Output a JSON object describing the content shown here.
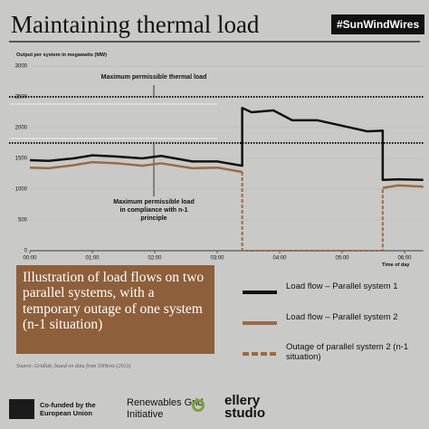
{
  "chart_data": {
    "type": "line",
    "title": "Maintaining thermal load",
    "tag": "#SunWindWires",
    "ylabel": "Output per system in megawatts (MW)",
    "xlabel": "Time of day",
    "xlim": [
      0,
      6.3
    ],
    "ylim": [
      0,
      3000
    ],
    "xticks": [
      {
        "value": 0,
        "label": "00:00"
      },
      {
        "value": 1,
        "label": "01:00"
      },
      {
        "value": 2,
        "label": "02:00"
      },
      {
        "value": 3,
        "label": "03:00"
      },
      {
        "value": 4,
        "label": "04:00"
      },
      {
        "value": 5,
        "label": "05:00"
      },
      {
        "value": 6,
        "label": "06:00"
      }
    ],
    "yticks": [
      0,
      500,
      1000,
      1500,
      2000,
      2500,
      3000
    ],
    "hlines": [
      {
        "value": 2500,
        "label": "Maximum permissible thermal load"
      },
      {
        "value": 1750,
        "label": "Maximum permissible load in compliance with n-1 principle"
      }
    ],
    "series": [
      {
        "name": "Load flow – Parallel system 1",
        "color": "#111111",
        "dashed": false,
        "x": [
          0,
          0.3,
          0.7,
          1,
          1.4,
          1.8,
          2.1,
          2.6,
          3.0,
          3.4,
          3.4,
          3.55,
          3.9,
          4.2,
          4.6,
          5.0,
          5.4,
          5.65,
          5.65,
          5.9,
          6.3
        ],
        "values": [
          1470,
          1460,
          1500,
          1550,
          1530,
          1500,
          1540,
          1450,
          1450,
          1380,
          2320,
          2250,
          2280,
          2120,
          2120,
          2030,
          1940,
          1950,
          1150,
          1160,
          1150
        ]
      },
      {
        "name": "Load flow – Parallel system 2",
        "color": "#9b6a43",
        "dashed": false,
        "x": [
          0,
          0.3,
          0.7,
          1,
          1.4,
          1.8,
          2.1,
          2.6,
          3.0,
          3.4,
          null,
          5.65,
          5.9,
          6.3
        ],
        "values": [
          1350,
          1340,
          1390,
          1440,
          1420,
          1380,
          1420,
          1340,
          1350,
          1280,
          null,
          1020,
          1060,
          1040
        ]
      },
      {
        "name": "Outage of parallel system 2 (n-1 situation)",
        "color": "#9b6a43",
        "dashed": true,
        "x": [
          3.4,
          3.4,
          5.65,
          5.65
        ],
        "values": [
          1280,
          0,
          0,
          1020
        ]
      }
    ],
    "caption": "Illustration of load flows on two parallel systems, with a temporary outage of one system (n-1 situation)",
    "source": "Source: Gridlab, based on data from 50Hertz (2013)"
  },
  "footer": {
    "eu": "Co-funded by the European Union",
    "rgi": "Renewables Grid Initiative",
    "studio": "ellery studio"
  }
}
